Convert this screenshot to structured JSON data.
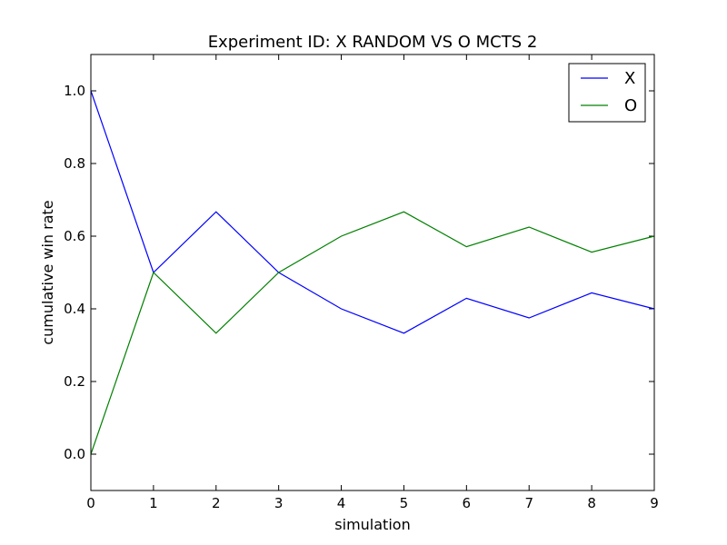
{
  "chart_data": {
    "type": "line",
    "title": "Experiment ID: X RANDOM VS O MCTS 2",
    "xlabel": "simulation",
    "ylabel": "cumulative win rate",
    "xlim": [
      0,
      9
    ],
    "ylim": [
      -0.1,
      1.1
    ],
    "x": [
      0,
      1,
      2,
      3,
      4,
      5,
      6,
      7,
      8,
      9
    ],
    "x_ticks": [
      "0",
      "1",
      "2",
      "3",
      "4",
      "5",
      "6",
      "7",
      "8",
      "9"
    ],
    "y_ticks": [
      "0.0",
      "0.2",
      "0.4",
      "0.6",
      "0.8",
      "1.0"
    ],
    "grid": false,
    "legend_position": "top-right",
    "series": [
      {
        "name": "X",
        "color": "#0000ff",
        "values": [
          1.0,
          0.5,
          0.667,
          0.5,
          0.4,
          0.333,
          0.429,
          0.375,
          0.444,
          0.4
        ]
      },
      {
        "name": "O",
        "color": "#008000",
        "values": [
          0.0,
          0.5,
          0.333,
          0.5,
          0.6,
          0.667,
          0.571,
          0.625,
          0.556,
          0.6
        ]
      }
    ]
  }
}
